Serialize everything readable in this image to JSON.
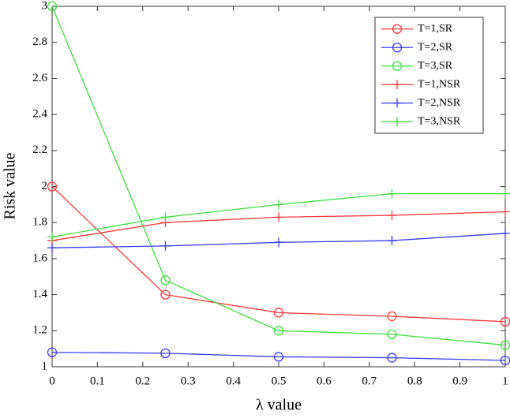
{
  "chart_data": {
    "type": "line",
    "xlabel": "λ value",
    "ylabel": "Risk value",
    "x": [
      0,
      0.25,
      0.5,
      0.75,
      1
    ],
    "series": [
      {
        "name": "T=1,SR",
        "color": "#ff3b3b",
        "marker": "circle",
        "values": [
          2.0,
          1.4,
          1.3,
          1.28,
          1.25
        ]
      },
      {
        "name": "T=2,SR",
        "color": "#3b3bff",
        "marker": "circle",
        "values": [
          1.08,
          1.075,
          1.055,
          1.05,
          1.035
        ]
      },
      {
        "name": "T=3,SR",
        "color": "#3be03b",
        "marker": "circle",
        "values": [
          3.0,
          1.48,
          1.2,
          1.18,
          1.12
        ]
      },
      {
        "name": "T=1,NSR",
        "color": "#ff3b3b",
        "marker": "plus",
        "values": [
          1.7,
          1.8,
          1.83,
          1.84,
          1.86
        ]
      },
      {
        "name": "T=2,NSR",
        "color": "#3b3bff",
        "marker": "plus",
        "values": [
          1.66,
          1.67,
          1.69,
          1.7,
          1.74
        ]
      },
      {
        "name": "T=3,NSR",
        "color": "#3be03b",
        "marker": "plus",
        "values": [
          1.72,
          1.83,
          1.9,
          1.96,
          1.96
        ]
      }
    ],
    "xlim": [
      0,
      1
    ],
    "ylim": [
      1,
      3
    ],
    "xticks": [
      0,
      0.1,
      0.2,
      0.3,
      0.4,
      0.5,
      0.6,
      0.7,
      0.8,
      0.9,
      1
    ],
    "yticks": [
      1,
      1.2,
      1.4,
      1.6,
      1.8,
      2,
      2.2,
      2.4,
      2.6,
      2.8,
      3
    ],
    "grid": false,
    "legend": "northeast"
  }
}
